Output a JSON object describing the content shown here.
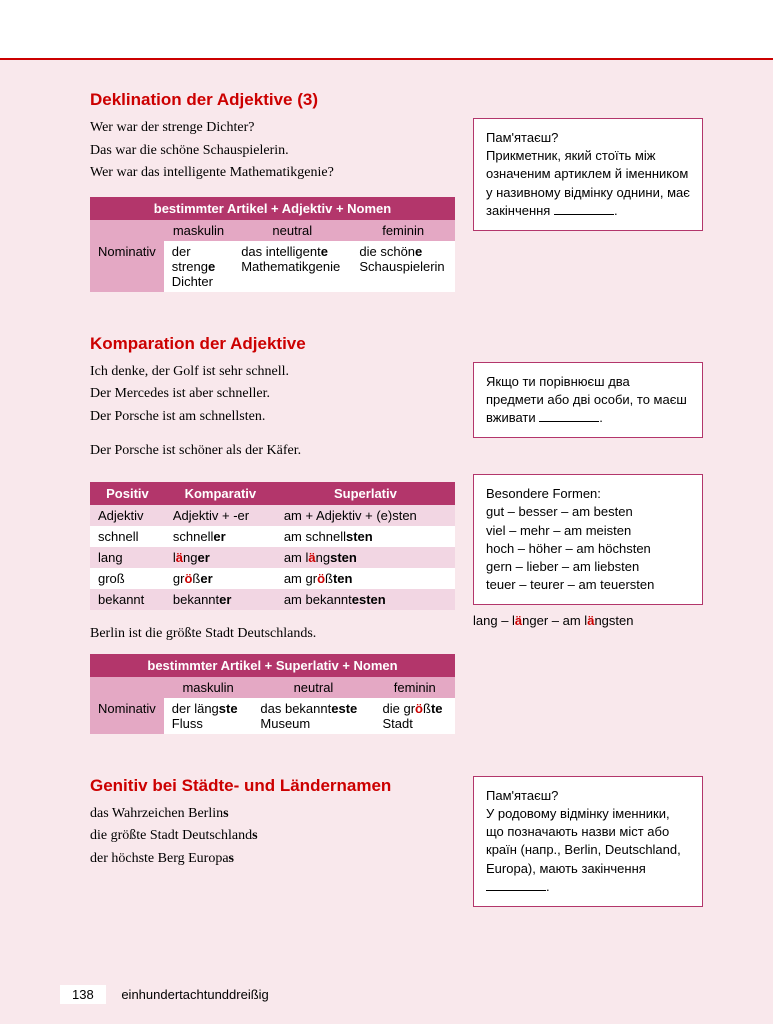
{
  "colors": {
    "page_bg": "#f9e8ec",
    "accent_red": "#c00",
    "table_header_bg": "#b3366b",
    "table_subhead_bg": "#e4a8c4",
    "sidebox_border": "#b3366b",
    "white": "#ffffff"
  },
  "section1": {
    "title": "Deklination der Adjektive (3)",
    "lines": [
      "Wer war der strenge Dichter?",
      "Das war die schöne Schauspielerin.",
      "Wer war das intelligente Mathematikgenie?"
    ],
    "sidebox": "Пам'ятаєш?\nПрикметник, який стоїть між означеним артиклем й іменником у називному відмінку однини, має закінчення ________.",
    "table": {
      "header": "bestimmter Artikel + Adjektiv + Nomen",
      "subheaders": [
        "",
        "maskulin",
        "neutral",
        "feminin"
      ],
      "row_label": "Nominativ",
      "cells": [
        "der strenge Dichter",
        "das intelligente Mathematikgenie",
        "die schöne Schauspielerin"
      ],
      "bold_endings": [
        "e",
        "e",
        "e"
      ]
    }
  },
  "section2": {
    "title": "Komparation der Adjektive",
    "lines1": [
      "Ich denke, der Golf ist sehr schnell.",
      "Der Mercedes ist aber schneller.",
      "Der Porsche ist am schnellsten."
    ],
    "line2": "Der Porsche ist schöner als der Käfer.",
    "sidebox1": "Якщо ти порівнюєш два предмети або дві особи, то маєш вживати ________.",
    "sidebox2_title": "Besondere Formen:",
    "sidebox2_lines": [
      "gut – besser – am besten",
      "viel – mehr – am meisten",
      "hoch – höher – am höchsten",
      "gern – lieber – am liebsten",
      "teuer – teurer – am teuersten"
    ],
    "magnify_line_parts": [
      "lang – l",
      "ä",
      "nger – am l",
      "ä",
      "ngsten"
    ],
    "table": {
      "headers": [
        "Positiv",
        "Komparativ",
        "Superlativ"
      ],
      "rows": [
        [
          "Adjektiv",
          "Adjektiv + -er",
          "am + Adjektiv + (e)sten"
        ],
        [
          "schnell",
          "schnell<b>er</b>",
          "am schnell<b>sten</b>"
        ],
        [
          "lang",
          "l<r>ä</r>ng<b>er</b>",
          "am l<r>ä</r>ng<b>sten</b>"
        ],
        [
          "groß",
          "gr<r>ö</r>ß<b>er</b>",
          "am gr<r>ö</r>ß<b>ten</b>"
        ],
        [
          "bekannt",
          "bekannt<b>er</b>",
          "am bekannt<b>esten</b>"
        ]
      ]
    },
    "line3": "Berlin ist die größte Stadt Deutschlands.",
    "table2": {
      "header": "bestimmter Artikel + Superlativ + Nomen",
      "subheaders": [
        "",
        "maskulin",
        "neutral",
        "feminin"
      ],
      "row_label": "Nominativ",
      "cells_html": [
        "der läng<b>ste</b> Fluss",
        "das bekannt<b>este</b> Museum",
        "die gr<r>ö</r>ß<b>te</b> Stadt"
      ]
    }
  },
  "section3": {
    "title": "Genitiv bei Städte- und Ländernamen",
    "lines_html": [
      "das Wahrzeichen Berlin<b>s</b>",
      "die größte Stadt Deutschland<b>s</b>",
      "der höchste Berg Europa<b>s</b>"
    ],
    "sidebox": "Пам'ятаєш?\nУ родовому відмінку іменники, що позначають назви міст або країн (напр., Berlin, Deutschland, Europa), мають закінчення ________."
  },
  "footer": {
    "page_number": "138",
    "page_word": "einhundertachtunddreißig"
  }
}
